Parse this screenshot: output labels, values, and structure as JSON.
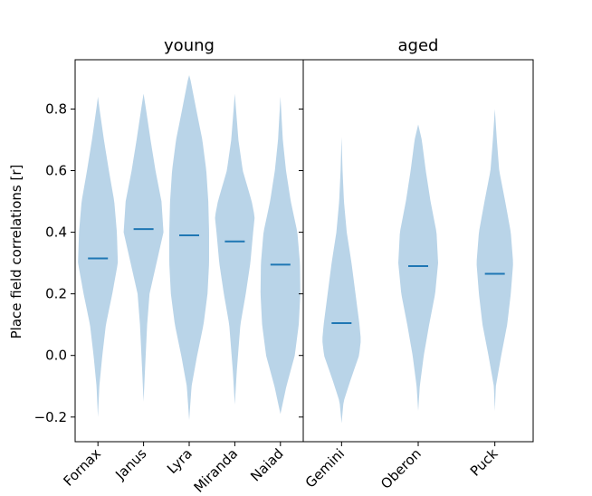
{
  "chart_data": {
    "type": "violin",
    "ylabel": "Place field correlations [r]",
    "ylim": [
      -0.28,
      0.96
    ],
    "yticks": [
      -0.2,
      0.0,
      0.2,
      0.4,
      0.6,
      0.8
    ],
    "ytick_labels": [
      "−0.2",
      "0.0",
      "0.2",
      "0.4",
      "0.6",
      "0.8"
    ],
    "fill_color": "#b9d4e8",
    "median_color": "#1f77b4",
    "panels": [
      {
        "title": "young",
        "categories": [
          "Fornax",
          "Janus",
          "Lyra",
          "Miranda",
          "Naiad"
        ],
        "violins": [
          {
            "name": "Fornax",
            "min": -0.2,
            "max": 0.84,
            "median": 0.315,
            "profile": [
              [
                -0.2,
                0.0
              ],
              [
                -0.1,
                0.07
              ],
              [
                0.0,
                0.22
              ],
              [
                0.1,
                0.4
              ],
              [
                0.2,
                0.72
              ],
              [
                0.3,
                1.0
              ],
              [
                0.4,
                0.95
              ],
              [
                0.5,
                0.82
              ],
              [
                0.6,
                0.55
              ],
              [
                0.7,
                0.3
              ],
              [
                0.8,
                0.08
              ],
              [
                0.84,
                0.0
              ]
            ]
          },
          {
            "name": "Janus",
            "min": -0.15,
            "max": 0.85,
            "median": 0.41,
            "profile": [
              [
                -0.15,
                0.0
              ],
              [
                -0.05,
                0.07
              ],
              [
                0.1,
                0.18
              ],
              [
                0.2,
                0.3
              ],
              [
                0.3,
                0.65
              ],
              [
                0.4,
                1.0
              ],
              [
                0.5,
                0.9
              ],
              [
                0.6,
                0.6
              ],
              [
                0.7,
                0.35
              ],
              [
                0.8,
                0.12
              ],
              [
                0.85,
                0.0
              ]
            ]
          },
          {
            "name": "Lyra",
            "min": -0.21,
            "max": 0.91,
            "median": 0.39,
            "profile": [
              [
                -0.21,
                0.0
              ],
              [
                -0.1,
                0.12
              ],
              [
                0.0,
                0.4
              ],
              [
                0.1,
                0.72
              ],
              [
                0.2,
                0.92
              ],
              [
                0.3,
                1.0
              ],
              [
                0.4,
                1.0
              ],
              [
                0.5,
                0.96
              ],
              [
                0.6,
                0.86
              ],
              [
                0.7,
                0.66
              ],
              [
                0.8,
                0.35
              ],
              [
                0.9,
                0.05
              ],
              [
                0.91,
                0.0
              ]
            ]
          },
          {
            "name": "Miranda",
            "min": -0.16,
            "max": 0.85,
            "median": 0.37,
            "profile": [
              [
                -0.16,
                0.0
              ],
              [
                -0.05,
                0.1
              ],
              [
                0.1,
                0.28
              ],
              [
                0.2,
                0.55
              ],
              [
                0.3,
                0.78
              ],
              [
                0.4,
                0.92
              ],
              [
                0.45,
                1.0
              ],
              [
                0.5,
                0.85
              ],
              [
                0.6,
                0.4
              ],
              [
                0.7,
                0.18
              ],
              [
                0.8,
                0.06
              ],
              [
                0.85,
                0.0
              ]
            ]
          },
          {
            "name": "Naiad",
            "min": -0.19,
            "max": 0.84,
            "median": 0.295,
            "profile": [
              [
                -0.19,
                0.0
              ],
              [
                -0.1,
                0.3
              ],
              [
                0.0,
                0.72
              ],
              [
                0.1,
                0.92
              ],
              [
                0.2,
                1.0
              ],
              [
                0.3,
                0.98
              ],
              [
                0.4,
                0.85
              ],
              [
                0.5,
                0.52
              ],
              [
                0.6,
                0.28
              ],
              [
                0.7,
                0.12
              ],
              [
                0.84,
                0.0
              ]
            ]
          }
        ]
      },
      {
        "title": "aged",
        "categories": [
          "Gemini",
          "Oberon",
          "Puck"
        ],
        "violins": [
          {
            "name": "Gemini",
            "min": -0.22,
            "max": 0.71,
            "median": 0.105,
            "profile": [
              [
                -0.22,
                0.0
              ],
              [
                -0.15,
                0.1
              ],
              [
                -0.08,
                0.45
              ],
              [
                0.0,
                0.88
              ],
              [
                0.05,
                0.97
              ],
              [
                0.1,
                0.9
              ],
              [
                0.2,
                0.7
              ],
              [
                0.3,
                0.5
              ],
              [
                0.4,
                0.26
              ],
              [
                0.5,
                0.12
              ],
              [
                0.6,
                0.05
              ],
              [
                0.71,
                0.0
              ]
            ]
          },
          {
            "name": "Oberon",
            "min": -0.18,
            "max": 0.75,
            "median": 0.29,
            "profile": [
              [
                -0.18,
                0.0
              ],
              [
                -0.1,
                0.08
              ],
              [
                0.0,
                0.28
              ],
              [
                0.1,
                0.55
              ],
              [
                0.2,
                0.85
              ],
              [
                0.3,
                1.0
              ],
              [
                0.4,
                0.92
              ],
              [
                0.5,
                0.62
              ],
              [
                0.6,
                0.38
              ],
              [
                0.7,
                0.18
              ],
              [
                0.75,
                0.0
              ]
            ]
          },
          {
            "name": "Puck",
            "min": -0.18,
            "max": 0.8,
            "median": 0.265,
            "profile": [
              [
                -0.18,
                0.0
              ],
              [
                -0.1,
                0.05
              ],
              [
                0.0,
                0.32
              ],
              [
                0.1,
                0.62
              ],
              [
                0.2,
                0.8
              ],
              [
                0.3,
                0.92
              ],
              [
                0.4,
                0.8
              ],
              [
                0.5,
                0.52
              ],
              [
                0.6,
                0.22
              ],
              [
                0.7,
                0.1
              ],
              [
                0.8,
                0.0
              ]
            ]
          }
        ]
      }
    ]
  }
}
